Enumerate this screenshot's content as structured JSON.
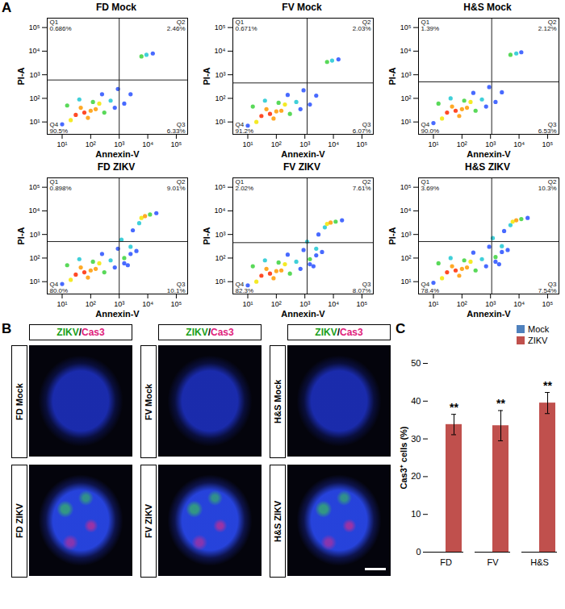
{
  "figure": {
    "panel_labels": [
      "A",
      "B",
      "C"
    ],
    "images": {
      "columns": [
        {
          "stain": [
            "ZIKV",
            "/",
            "Cas3"
          ],
          "stain_colors": [
            "#1a9e1a",
            "#000000",
            "#e0207a"
          ],
          "rows": [
            "FD Mock",
            "FD ZIKV"
          ]
        },
        {
          "stain": [
            "ZIKV",
            "/",
            "Cas3"
          ],
          "stain_colors": [
            "#1a9e1a",
            "#000000",
            "#e0207a"
          ],
          "rows": [
            "FV Mock",
            "FV ZIKV"
          ]
        },
        {
          "stain": [
            "ZIKV",
            "/",
            "Cas3"
          ],
          "stain_colors": [
            "#1a9e1a",
            "#000000",
            "#e0207a"
          ],
          "rows": [
            "H&S Mock",
            "H&S ZIKV"
          ]
        }
      ]
    }
  },
  "chart_data": [
    {
      "type": "scatter",
      "title": "FD Mock",
      "xlabel": "Annexin-V",
      "ylabel": "PI-A",
      "log": true,
      "xlim": [
        3,
        250000
      ],
      "ylim": [
        3,
        250000
      ],
      "xticks": [
        {
          "value": 10,
          "label": "10¹"
        },
        {
          "value": 100,
          "label": "10²"
        },
        {
          "value": 1000,
          "label": "10³"
        },
        {
          "value": 10000,
          "label": "10⁴"
        },
        {
          "value": 100000,
          "label": "10⁵"
        }
      ],
      "yticks": [
        {
          "value": 10,
          "label": "10¹"
        },
        {
          "value": 100,
          "label": "10²"
        },
        {
          "value": 1000,
          "label": "10³"
        },
        {
          "value": 10000,
          "label": "10⁴"
        },
        {
          "value": 100000,
          "label": "10⁵"
        }
      ],
      "gates": {
        "x": 1000,
        "y": 600
      },
      "quadrants": [
        {
          "name": "Q1",
          "value": 0.686,
          "label": "0.686%"
        },
        {
          "name": "Q2",
          "value": 2.46,
          "label": "2.46%"
        },
        {
          "name": "Q3",
          "value": 6.33,
          "label": "6.33%"
        },
        {
          "name": "Q4",
          "value": 90.5,
          "label": "90.5%"
        }
      ],
      "x": [
        30,
        60,
        100,
        45,
        150,
        80,
        20,
        200,
        120,
        300,
        15,
        40,
        500,
        250,
        700,
        10,
        1500,
        900,
        2500,
        6000,
        9000,
        15000
      ],
      "y": [
        20,
        25,
        30,
        40,
        35,
        15,
        12,
        60,
        70,
        25,
        50,
        90,
        80,
        150,
        40,
        8,
        60,
        250,
        150,
        6000,
        7000,
        8000
      ],
      "colors": [
        "#ff2a00",
        "#ff2a00",
        "#ff9a00",
        "#ff9a00",
        "#ff9a00",
        "#ff9a00",
        "#f2e600",
        "#f2e600",
        "#3cd23c",
        "#3cd23c",
        "#3cd23c",
        "#1ec8d2",
        "#1ec8d2",
        "#2850ff",
        "#2850ff",
        "#2850ff",
        "#2850ff",
        "#2850ff",
        "#2850ff",
        "#3cd23c",
        "#1ec8d2",
        "#2850ff"
      ]
    },
    {
      "type": "scatter",
      "title": "FV Mock",
      "xlabel": "Annexin-V",
      "ylabel": "PI-A",
      "log": true,
      "xlim": [
        3,
        250000
      ],
      "ylim": [
        3,
        250000
      ],
      "xticks": [
        {
          "value": 10,
          "label": "10¹"
        },
        {
          "value": 100,
          "label": "10²"
        },
        {
          "value": 1000,
          "label": "10³"
        },
        {
          "value": 10000,
          "label": "10⁴"
        },
        {
          "value": 100000,
          "label": "10⁵"
        }
      ],
      "yticks": [
        {
          "value": 10,
          "label": "10¹"
        },
        {
          "value": 100,
          "label": "10²"
        },
        {
          "value": 1000,
          "label": "10³"
        },
        {
          "value": 10000,
          "label": "10⁴"
        },
        {
          "value": 100000,
          "label": "10⁵"
        }
      ],
      "gates": {
        "x": 1200,
        "y": 450
      },
      "quadrants": [
        {
          "name": "Q1",
          "value": 0.671,
          "label": "0.671%"
        },
        {
          "name": "Q2",
          "value": 2.03,
          "label": "2.03%"
        },
        {
          "name": "Q3",
          "value": 6.07,
          "label": "6.07%"
        },
        {
          "name": "Q4",
          "value": 91.2,
          "label": "91.2%"
        }
      ],
      "x": [
        30,
        60,
        100,
        45,
        150,
        80,
        20,
        200,
        120,
        300,
        15,
        40,
        500,
        250,
        700,
        10,
        1500,
        900,
        2500,
        6000,
        9000,
        15000
      ],
      "y": [
        18,
        22,
        28,
        35,
        30,
        14,
        10,
        55,
        65,
        22,
        45,
        80,
        70,
        140,
        35,
        7,
        55,
        220,
        130,
        3500,
        4000,
        4500
      ],
      "colors": [
        "#ff2a00",
        "#ff2a00",
        "#ff9a00",
        "#ff9a00",
        "#ff9a00",
        "#ff9a00",
        "#f2e600",
        "#f2e600",
        "#3cd23c",
        "#3cd23c",
        "#3cd23c",
        "#1ec8d2",
        "#1ec8d2",
        "#2850ff",
        "#2850ff",
        "#2850ff",
        "#2850ff",
        "#2850ff",
        "#2850ff",
        "#3cd23c",
        "#1ec8d2",
        "#2850ff"
      ]
    },
    {
      "type": "scatter",
      "title": "H&S Mock",
      "xlabel": "Annexin-V",
      "ylabel": "PI-A",
      "log": true,
      "xlim": [
        3,
        250000
      ],
      "ylim": [
        3,
        250000
      ],
      "xticks": [
        {
          "value": 10,
          "label": "10¹"
        },
        {
          "value": 100,
          "label": "10²"
        },
        {
          "value": 1000,
          "label": "10³"
        },
        {
          "value": 10000,
          "label": "10⁴"
        },
        {
          "value": 100000,
          "label": "10⁵"
        }
      ],
      "yticks": [
        {
          "value": 10,
          "label": "10¹"
        },
        {
          "value": 100,
          "label": "10²"
        },
        {
          "value": 1000,
          "label": "10³"
        },
        {
          "value": 10000,
          "label": "10⁴"
        },
        {
          "value": 100000,
          "label": "10⁵"
        }
      ],
      "gates": {
        "x": 1100,
        "y": 500
      },
      "quadrants": [
        {
          "name": "Q1",
          "value": 1.39,
          "label": "1.39%"
        },
        {
          "name": "Q2",
          "value": 2.12,
          "label": "2.12%"
        },
        {
          "name": "Q3",
          "value": 6.53,
          "label": "6.53%"
        },
        {
          "name": "Q4",
          "value": 90,
          "label": "90.0%"
        }
      ],
      "x": [
        30,
        60,
        100,
        45,
        150,
        80,
        20,
        200,
        120,
        300,
        15,
        40,
        500,
        250,
        700,
        10,
        1500,
        900,
        2500,
        5000,
        8000,
        12000
      ],
      "y": [
        25,
        30,
        35,
        45,
        40,
        18,
        14,
        70,
        80,
        30,
        60,
        100,
        90,
        170,
        45,
        9,
        70,
        300,
        180,
        7000,
        8000,
        9000
      ],
      "colors": [
        "#ff2a00",
        "#ff2a00",
        "#ff9a00",
        "#ff9a00",
        "#ff9a00",
        "#ff9a00",
        "#f2e600",
        "#f2e600",
        "#3cd23c",
        "#3cd23c",
        "#3cd23c",
        "#1ec8d2",
        "#1ec8d2",
        "#2850ff",
        "#2850ff",
        "#2850ff",
        "#2850ff",
        "#2850ff",
        "#2850ff",
        "#3cd23c",
        "#1ec8d2",
        "#2850ff"
      ]
    },
    {
      "type": "scatter",
      "title": "FD ZIKV",
      "xlabel": "Annexin-V",
      "ylabel": "PI-A",
      "log": true,
      "xlim": [
        3,
        250000
      ],
      "ylim": [
        3,
        250000
      ],
      "xticks": [
        {
          "value": 10,
          "label": "10¹"
        },
        {
          "value": 100,
          "label": "10²"
        },
        {
          "value": 1000,
          "label": "10³"
        },
        {
          "value": 10000,
          "label": "10⁴"
        },
        {
          "value": 100000,
          "label": "10⁵"
        }
      ],
      "yticks": [
        {
          "value": 10,
          "label": "10¹"
        },
        {
          "value": 100,
          "label": "10²"
        },
        {
          "value": 1000,
          "label": "10³"
        },
        {
          "value": 10000,
          "label": "10⁴"
        },
        {
          "value": 100000,
          "label": "10⁵"
        }
      ],
      "gates": {
        "x": 1000,
        "y": 500
      },
      "quadrants": [
        {
          "name": "Q1",
          "value": 0.898,
          "label": "0.898%"
        },
        {
          "name": "Q2",
          "value": 9.01,
          "label": "9.01%"
        },
        {
          "name": "Q3",
          "value": 10.1,
          "label": "10.1%"
        },
        {
          "name": "Q4",
          "value": 80,
          "label": "80.0%"
        }
      ],
      "x": [
        30,
        60,
        100,
        45,
        150,
        80,
        20,
        200,
        120,
        300,
        15,
        40,
        500,
        250,
        700,
        10,
        1500,
        900,
        2500,
        1500,
        2500,
        4000,
        2000,
        1200,
        5000,
        3000,
        6000,
        8000,
        12000,
        20000
      ],
      "y": [
        20,
        25,
        30,
        40,
        35,
        15,
        12,
        60,
        70,
        25,
        50,
        90,
        80,
        150,
        40,
        8,
        60,
        250,
        150,
        100,
        300,
        200,
        50,
        600,
        3000,
        1500,
        5000,
        6000,
        7000,
        8000
      ],
      "colors": [
        "#ff2a00",
        "#ff2a00",
        "#ff9a00",
        "#ff9a00",
        "#ff9a00",
        "#ff9a00",
        "#f2e600",
        "#f2e600",
        "#3cd23c",
        "#3cd23c",
        "#3cd23c",
        "#1ec8d2",
        "#1ec8d2",
        "#2850ff",
        "#2850ff",
        "#2850ff",
        "#2850ff",
        "#2850ff",
        "#2850ff",
        "#3cd23c",
        "#1ec8d2",
        "#2850ff",
        "#2850ff",
        "#1ec8d2",
        "#1ec8d2",
        "#2850ff",
        "#f2e600",
        "#ff9a00",
        "#3cd23c",
        "#2850ff"
      ]
    },
    {
      "type": "scatter",
      "title": "FV ZIKV",
      "xlabel": "Annexin-V",
      "ylabel": "PI-A",
      "log": true,
      "xlim": [
        3,
        250000
      ],
      "ylim": [
        3,
        250000
      ],
      "xticks": [
        {
          "value": 10,
          "label": "10¹"
        },
        {
          "value": 100,
          "label": "10²"
        },
        {
          "value": 1000,
          "label": "10³"
        },
        {
          "value": 10000,
          "label": "10⁴"
        },
        {
          "value": 100000,
          "label": "10⁵"
        }
      ],
      "yticks": [
        {
          "value": 10,
          "label": "10¹"
        },
        {
          "value": 100,
          "label": "10²"
        },
        {
          "value": 1000,
          "label": "10³"
        },
        {
          "value": 10000,
          "label": "10⁴"
        },
        {
          "value": 100000,
          "label": "10⁵"
        }
      ],
      "gates": {
        "x": 1200,
        "y": 450
      },
      "quadrants": [
        {
          "name": "Q1",
          "value": 2.02,
          "label": "2.02%"
        },
        {
          "name": "Q2",
          "value": 7.61,
          "label": "7.61%"
        },
        {
          "name": "Q3",
          "value": 8.07,
          "label": "8.07%"
        },
        {
          "name": "Q4",
          "value": 82.3,
          "label": "82.3%"
        }
      ],
      "x": [
        30,
        60,
        100,
        45,
        150,
        80,
        20,
        200,
        120,
        300,
        15,
        40,
        500,
        250,
        700,
        10,
        1500,
        900,
        2500,
        1500,
        2500,
        4000,
        2000,
        1200,
        5000,
        3000,
        6000,
        8000,
        12000,
        20000
      ],
      "y": [
        18,
        22,
        28,
        35,
        30,
        14,
        10,
        55,
        65,
        22,
        45,
        80,
        70,
        140,
        35,
        7,
        55,
        220,
        130,
        90,
        250,
        180,
        45,
        500,
        2000,
        1000,
        2800,
        3200,
        3500,
        4000
      ],
      "colors": [
        "#ff2a00",
        "#ff2a00",
        "#ff9a00",
        "#ff9a00",
        "#ff9a00",
        "#ff9a00",
        "#f2e600",
        "#f2e600",
        "#3cd23c",
        "#3cd23c",
        "#3cd23c",
        "#1ec8d2",
        "#1ec8d2",
        "#2850ff",
        "#2850ff",
        "#2850ff",
        "#2850ff",
        "#2850ff",
        "#2850ff",
        "#3cd23c",
        "#1ec8d2",
        "#2850ff",
        "#2850ff",
        "#1ec8d2",
        "#1ec8d2",
        "#2850ff",
        "#f2e600",
        "#ff9a00",
        "#3cd23c",
        "#2850ff"
      ]
    },
    {
      "type": "scatter",
      "title": "H&S ZIKV",
      "xlabel": "Annexin-V",
      "ylabel": "PI-A",
      "log": true,
      "xlim": [
        3,
        250000
      ],
      "ylim": [
        3,
        250000
      ],
      "xticks": [
        {
          "value": 10,
          "label": "10¹"
        },
        {
          "value": 100,
          "label": "10²"
        },
        {
          "value": 1000,
          "label": "10³"
        },
        {
          "value": 10000,
          "label": "10⁴"
        },
        {
          "value": 100000,
          "label": "10⁵"
        }
      ],
      "yticks": [
        {
          "value": 10,
          "label": "10¹"
        },
        {
          "value": 100,
          "label": "10²"
        },
        {
          "value": 1000,
          "label": "10³"
        },
        {
          "value": 10000,
          "label": "10⁴"
        },
        {
          "value": 100000,
          "label": "10⁵"
        }
      ],
      "gates": {
        "x": 1100,
        "y": 500
      },
      "quadrants": [
        {
          "name": "Q1",
          "value": 3.69,
          "label": "3.69%"
        },
        {
          "name": "Q2",
          "value": 10.3,
          "label": "10.3%"
        },
        {
          "name": "Q3",
          "value": 7.54,
          "label": "7.54%"
        },
        {
          "name": "Q4",
          "value": 78.4,
          "label": "78.4%"
        }
      ],
      "x": [
        30,
        60,
        100,
        45,
        150,
        80,
        20,
        200,
        120,
        300,
        15,
        40,
        500,
        250,
        700,
        10,
        1500,
        900,
        2500,
        1500,
        2500,
        4000,
        2000,
        1200,
        5000,
        3000,
        6000,
        8000,
        12000,
        20000
      ],
      "y": [
        25,
        30,
        35,
        45,
        40,
        18,
        14,
        70,
        80,
        30,
        60,
        100,
        90,
        170,
        45,
        9,
        70,
        300,
        180,
        110,
        320,
        220,
        55,
        700,
        2500,
        1400,
        3500,
        4000,
        4500,
        5000
      ],
      "colors": [
        "#ff2a00",
        "#ff2a00",
        "#ff9a00",
        "#ff9a00",
        "#ff9a00",
        "#ff9a00",
        "#f2e600",
        "#f2e600",
        "#3cd23c",
        "#3cd23c",
        "#3cd23c",
        "#1ec8d2",
        "#1ec8d2",
        "#2850ff",
        "#2850ff",
        "#2850ff",
        "#2850ff",
        "#2850ff",
        "#2850ff",
        "#3cd23c",
        "#1ec8d2",
        "#2850ff",
        "#2850ff",
        "#1ec8d2",
        "#1ec8d2",
        "#2850ff",
        "#f2e600",
        "#ff9a00",
        "#3cd23c",
        "#2850ff"
      ]
    },
    {
      "type": "bar",
      "ylabel": "Cas3⁺ cells (%)",
      "categories": [
        "FD",
        "FV",
        "H&S"
      ],
      "series": [
        {
          "name": "Mock",
          "color": "#4f81bd",
          "values": [
            0,
            0,
            0
          ],
          "errors": [
            0,
            0,
            0
          ]
        },
        {
          "name": "ZIKV",
          "color": "#c0504d",
          "values": [
            33.8,
            33.5,
            39.5
          ],
          "errors": [
            2.7,
            4,
            2.8
          ]
        }
      ],
      "ylim": [
        0,
        50
      ],
      "yticks": [
        0,
        10,
        20,
        30,
        40,
        50
      ],
      "legend": "top-right",
      "annotations": [
        {
          "category": "FD",
          "series": "ZIKV",
          "text": "**"
        },
        {
          "category": "FV",
          "series": "ZIKV",
          "text": "**"
        },
        {
          "category": "H&S",
          "series": "ZIKV",
          "text": "**"
        }
      ]
    }
  ]
}
